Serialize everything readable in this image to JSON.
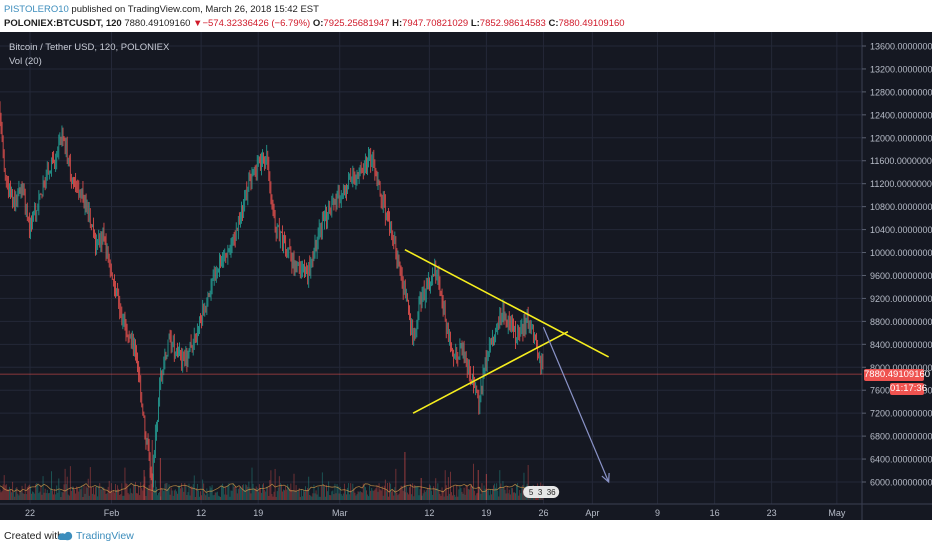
{
  "header": {
    "author": "PISTOLERO10",
    "published": " published on TradingView.com, March 26, 2018 15:42 EST",
    "symbol": "POLONIEX:BTCUSDT, 120",
    "last": " 7880.49109160 ",
    "change_arrow": "▼",
    "change": "−574.32336426 (−6.79%)",
    "o_label": " O:",
    "o_value": "7925.25681947",
    "h_label": " H:",
    "h_value": "7947.70821029",
    "l_label": " L:",
    "l_value": "7852.98614583",
    "c_label": " C:",
    "c_value": "7880.49109160"
  },
  "legend": {
    "series": "Bitcoin / Tether USD, 120, POLONIEX",
    "volume": "Vol (20)"
  },
  "price_badge": "7880.49109160",
  "countdown_badge": "01:17:36",
  "events_badge": {
    "a": "5",
    "b": "3",
    "c": "36"
  },
  "footer": {
    "created": "Created with",
    "brand": "TradingView"
  },
  "colors": {
    "background": "#151822",
    "up": "#26a69a",
    "down": "#ef5350",
    "trendline": "#f6ee1e",
    "arrow": "#8a93c8",
    "price_line": "#ef5350"
  },
  "chart_data": {
    "type": "candlestick",
    "title": "Bitcoin / Tether USD, 120, POLONIEX",
    "y_ticks": [
      "13600.00000000",
      "13200.00000000",
      "12800.00000000",
      "12400.00000000",
      "12000.00000000",
      "11600.00000000",
      "11200.00000000",
      "10800.00000000",
      "10400.00000000",
      "10000.00000000",
      "9600.00000000",
      "9200.00000000",
      "8800.00000000",
      "8400.00000000",
      "8000.00000000",
      "7600.00000000",
      "7200.00000000",
      "6800.00000000",
      "6400.00000000",
      "6000.00000000"
    ],
    "x_ticks": [
      "22",
      "Feb",
      "12",
      "19",
      "Mar",
      "12",
      "19",
      "26",
      "Apr",
      "9",
      "16",
      "23",
      "May"
    ],
    "ylim": [
      5600,
      13800
    ],
    "last_price": 7880.4910916,
    "price_path": [
      {
        "x": "Jan 16",
        "y": 11600
      },
      {
        "x": "Jan 17",
        "y": 12600
      },
      {
        "x": "Jan 18",
        "y": 12900
      },
      {
        "x": "Jan 19",
        "y": 11300
      },
      {
        "x": "Jan 20",
        "y": 10900
      },
      {
        "x": "Jan 21",
        "y": 11200
      },
      {
        "x": "Jan 22",
        "y": 10400
      },
      {
        "x": "Jan 24",
        "y": 11300
      },
      {
        "x": "Jan 26",
        "y": 12000
      },
      {
        "x": "Jan 27",
        "y": 11400
      },
      {
        "x": "Jan 29",
        "y": 10800
      },
      {
        "x": "Jan 30",
        "y": 10100
      },
      {
        "x": "Jan 31",
        "y": 10300
      },
      {
        "x": "Feb 2",
        "y": 9000
      },
      {
        "x": "Feb 3",
        "y": 8600
      },
      {
        "x": "Feb 4",
        "y": 8300
      },
      {
        "x": "Feb 5",
        "y": 7000
      },
      {
        "x": "Feb 6",
        "y": 6100
      },
      {
        "x": "Feb 7",
        "y": 7800
      },
      {
        "x": "Feb 8",
        "y": 8400
      },
      {
        "x": "Feb 10",
        "y": 8100
      },
      {
        "x": "Feb 12",
        "y": 8800
      },
      {
        "x": "Feb 14",
        "y": 9800
      },
      {
        "x": "Feb 16",
        "y": 10200
      },
      {
        "x": "Feb 18",
        "y": 11300
      },
      {
        "x": "Feb 20",
        "y": 11700
      },
      {
        "x": "Feb 21",
        "y": 10500
      },
      {
        "x": "Feb 23",
        "y": 9900
      },
      {
        "x": "Feb 25",
        "y": 9600
      },
      {
        "x": "Feb 27",
        "y": 10600
      },
      {
        "x": "Mar 1",
        "y": 11000
      },
      {
        "x": "Mar 3",
        "y": 11400
      },
      {
        "x": "Mar 5",
        "y": 11600
      },
      {
        "x": "Mar 6",
        "y": 11000
      },
      {
        "x": "Mar 8",
        "y": 10000
      },
      {
        "x": "Mar 9",
        "y": 9300
      },
      {
        "x": "Mar 10",
        "y": 8500
      },
      {
        "x": "Mar 11",
        "y": 9200
      },
      {
        "x": "Mar 13",
        "y": 9700
      },
      {
        "x": "Mar 14",
        "y": 8800
      },
      {
        "x": "Mar 15",
        "y": 8100
      },
      {
        "x": "Mar 16",
        "y": 8300
      },
      {
        "x": "Mar 17",
        "y": 7900
      },
      {
        "x": "Mar 18",
        "y": 7400
      },
      {
        "x": "Mar 19",
        "y": 8200
      },
      {
        "x": "Mar 20",
        "y": 8600
      },
      {
        "x": "Mar 21",
        "y": 9000
      },
      {
        "x": "Mar 22",
        "y": 8700
      },
      {
        "x": "Mar 23",
        "y": 8500
      },
      {
        "x": "Mar 24",
        "y": 8900
      },
      {
        "x": "Mar 25",
        "y": 8500
      },
      {
        "x": "Mar 26",
        "y": 7880
      }
    ],
    "drawings": [
      {
        "name": "upper-trendline",
        "from": {
          "x": "Mar 9",
          "y": 10050
        },
        "to": {
          "x": "Apr 3",
          "y": 8180
        }
      },
      {
        "name": "lower-trendline",
        "from": {
          "x": "Mar 10",
          "y": 7200
        },
        "to": {
          "x": "Mar 29",
          "y": 8620
        }
      },
      {
        "name": "projection-arrow",
        "from": {
          "x": "Mar 26",
          "y": 8700
        },
        "to": {
          "x": "Apr 3",
          "y": 6000
        }
      }
    ]
  }
}
